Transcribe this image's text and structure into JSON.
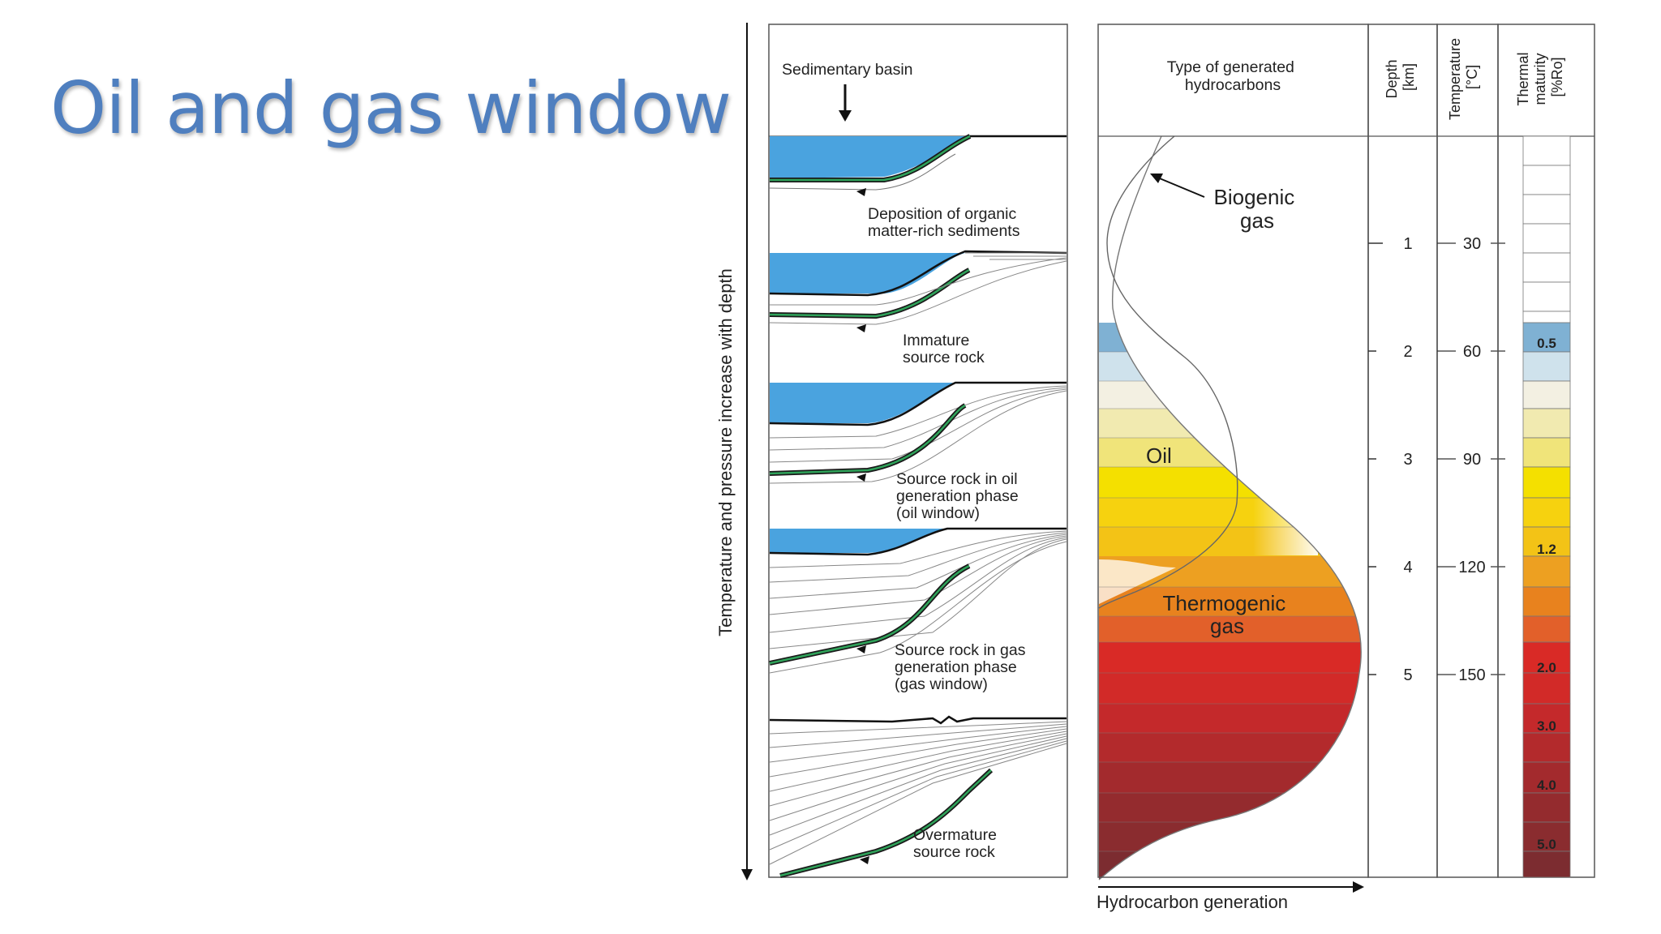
{
  "slide": {
    "title": "Oil and gas window"
  },
  "diagram": {
    "vertical_axis_label": "Temperature and pressure increase with depth",
    "basin_header": "Sedimentary basin",
    "stages": [
      {
        "label_lines": [
          "Deposition of organic",
          "matter-rich sediments"
        ]
      },
      {
        "label_lines": [
          "Immature",
          "source rock"
        ]
      },
      {
        "label_lines": [
          "Source rock in oil",
          "generation phase",
          "(oil window)"
        ]
      },
      {
        "label_lines": [
          "Source rock in gas",
          "generation phase",
          "(gas window)"
        ]
      },
      {
        "label_lines": [
          "Overmature",
          "source rock"
        ]
      }
    ],
    "hydrocarbon_header_lines": [
      "Type of generated",
      "hydrocarbons"
    ],
    "zone_labels": {
      "biogenic_lines": [
        "Biogenic",
        "gas"
      ],
      "oil": "Oil",
      "thermogenic_lines": [
        "Thermogenic",
        "gas"
      ]
    },
    "x_axis_label": "Hydrocarbon generation",
    "depth_header_lines": [
      "Depth",
      "[km]"
    ],
    "depth_values": [
      "1",
      "2",
      "3",
      "4",
      "5"
    ],
    "temperature_header_lines": [
      "Temperature",
      "[°C]"
    ],
    "temperature_values": [
      "30",
      "60",
      "90",
      "120",
      "150"
    ],
    "maturity_header_lines": [
      "Thermal",
      "maturity",
      "[%Ro]"
    ],
    "maturity_values": [
      "0.5",
      "1.2",
      "2.0",
      "3.0",
      "4.0",
      "5.0"
    ],
    "colors": {
      "water": "#4aa3df",
      "biogenic_blue": "#8fc0dd",
      "oil_yellow": "#f2e000",
      "gas_orange": "#e8821e",
      "gas_red": "#d92a26",
      "overmature": "#8c2c2e",
      "title_blue": "#4f7fbf"
    }
  }
}
